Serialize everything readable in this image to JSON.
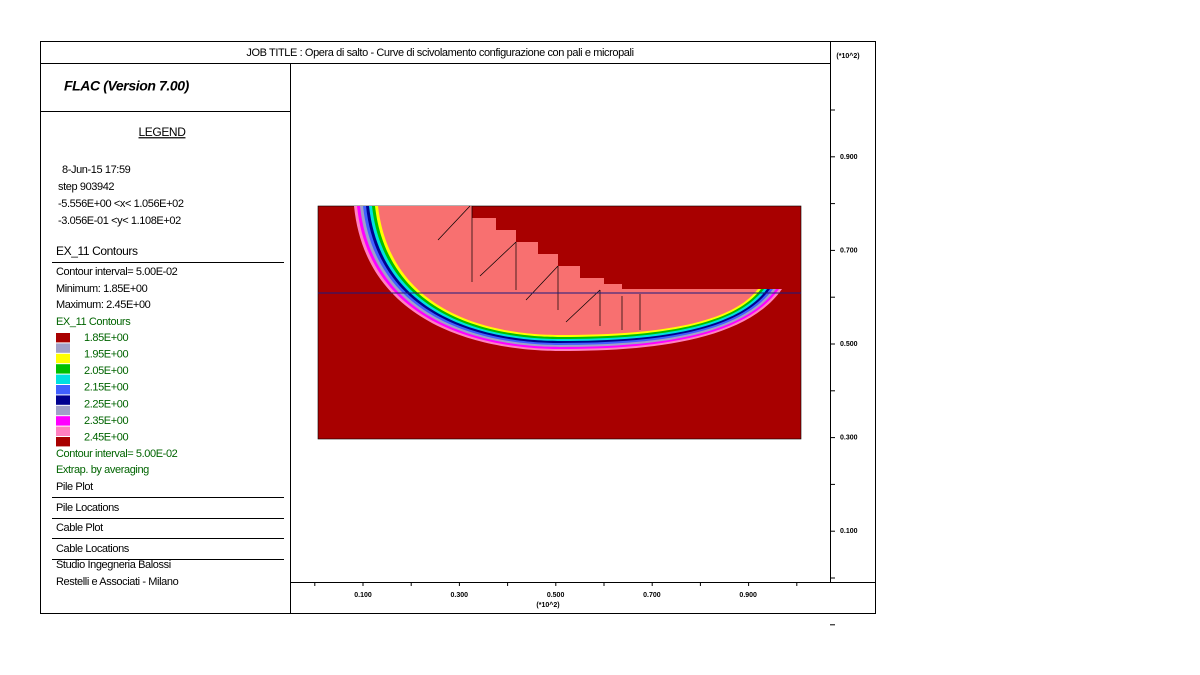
{
  "header": {
    "job_title": "JOB TITLE : Opera di salto - Curve di scivolamento configurazione con pali e micropali",
    "y_exponent": "(*10^2)"
  },
  "panel": {
    "program": "FLAC (Version 7.00)",
    "legend_title": "LEGEND",
    "info": [
      "8-Jun-15  17:59",
      "step   903942",
      "-5.556E+00 <x<  1.056E+02",
      "-3.056E-01 <y<  1.108E+02"
    ],
    "contours_title": "EX_11 Contours",
    "interval": "Contour interval=  5.00E-02",
    "minimum": "Minimum:   1.85E+00",
    "maximum": "Maximum:   2.45E+00",
    "legend_subtitle": "EX_11 Contours",
    "legend_items": [
      "1.85E+00",
      "1.95E+00",
      "2.05E+00",
      "2.15E+00",
      "2.25E+00",
      "2.35E+00",
      "2.45E+00"
    ],
    "legend_interval": "Contour interval=  5.00E-02",
    "extrap": "Extrap. by averaging",
    "plots": [
      "Pile Plot",
      "Pile Locations",
      "Cable Plot",
      "Cable Locations"
    ],
    "footer": [
      "Studio Ingegneria Balossi",
      "Restelli e Associati - Milano"
    ]
  },
  "x_axis": {
    "ticks": [
      "0.100",
      "0.300",
      "0.500",
      "0.700",
      "0.900"
    ],
    "exponent": "(*10^2)"
  },
  "y_axis": {
    "ticks": [
      "0.900",
      "0.700",
      "0.500",
      "0.300",
      "0.100"
    ]
  }
}
